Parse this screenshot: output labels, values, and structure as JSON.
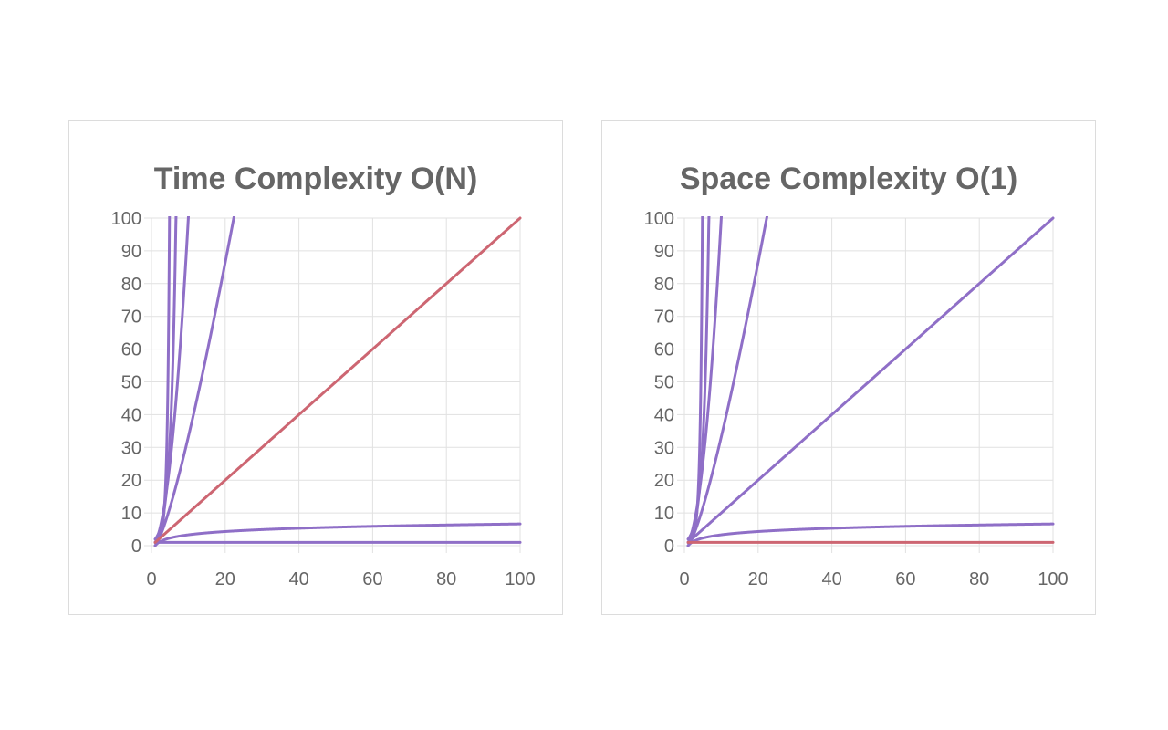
{
  "chart_data": [
    {
      "type": "line",
      "title": "Time Complexity O(N)",
      "xlabel": "",
      "ylabel": "",
      "xlim": [
        0,
        100
      ],
      "ylim": [
        0,
        100
      ],
      "xticks": [
        "0",
        "20",
        "40",
        "60",
        "80",
        "100"
      ],
      "yticks": [
        "0",
        "10",
        "20",
        "30",
        "40",
        "50",
        "60",
        "70",
        "80",
        "90",
        "100"
      ],
      "grid": true,
      "legend": "none",
      "highlight": "n",
      "series": [
        {
          "fn": "1"
        },
        {
          "fn": "log"
        },
        {
          "fn": "n"
        },
        {
          "fn": "nlogn"
        },
        {
          "fn": "n2"
        },
        {
          "fn": "2n"
        },
        {
          "fn": "fact"
        }
      ]
    },
    {
      "type": "line",
      "title": "Space Complexity O(1)",
      "xlabel": "",
      "ylabel": "",
      "xlim": [
        0,
        100
      ],
      "ylim": [
        0,
        100
      ],
      "xticks": [
        "0",
        "20",
        "40",
        "60",
        "80",
        "100"
      ],
      "yticks": [
        "0",
        "10",
        "20",
        "30",
        "40",
        "50",
        "60",
        "70",
        "80",
        "90",
        "100"
      ],
      "grid": true,
      "legend": "none",
      "highlight": "1",
      "series": [
        {
          "fn": "1"
        },
        {
          "fn": "log"
        },
        {
          "fn": "n"
        },
        {
          "fn": "nlogn"
        },
        {
          "fn": "n2"
        },
        {
          "fn": "2n"
        },
        {
          "fn": "fact"
        }
      ]
    }
  ],
  "colors": {
    "highlight": "#cd6672",
    "normal": "#8f6fc7",
    "grid": "#e1e1e1",
    "text": "#666666",
    "border": "#dcdcdc"
  }
}
